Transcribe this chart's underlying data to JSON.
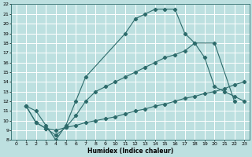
{
  "title": "",
  "xlabel": "Humidex (Indice chaleur)",
  "xlim": [
    -0.5,
    23.5
  ],
  "ylim": [
    8,
    22
  ],
  "xticks": [
    0,
    1,
    2,
    3,
    4,
    5,
    6,
    7,
    8,
    9,
    10,
    11,
    12,
    13,
    14,
    15,
    16,
    17,
    18,
    19,
    20,
    21,
    22,
    23
  ],
  "yticks": [
    8,
    9,
    10,
    11,
    12,
    13,
    14,
    15,
    16,
    17,
    18,
    19,
    20,
    21,
    22
  ],
  "bg_color": "#bde0e0",
  "grid_color": "#ffffff",
  "line_color": "#2d6b6b",
  "curve1_x": [
    1,
    2,
    3,
    4,
    5,
    6,
    7,
    11,
    12,
    13,
    14,
    15,
    16,
    17,
    18,
    20,
    22
  ],
  "curve1_y": [
    11.5,
    11.0,
    9.5,
    8.0,
    9.5,
    12.0,
    14.5,
    19.0,
    20.5,
    21.0,
    21.5,
    21.5,
    21.5,
    19.0,
    18.0,
    18.0,
    12.0
  ],
  "curve2_x": [
    1,
    2,
    3,
    4,
    5,
    6,
    7,
    8,
    9,
    10,
    11,
    12,
    13,
    14,
    15,
    16,
    17,
    18,
    19,
    20,
    21,
    22,
    23
  ],
  "curve2_y": [
    11.5,
    9.8,
    9.2,
    8.5,
    9.3,
    9.5,
    9.8,
    10.0,
    10.2,
    10.4,
    10.7,
    11.0,
    11.2,
    11.5,
    11.7,
    12.0,
    12.3,
    12.5,
    12.8,
    13.0,
    13.3,
    13.7,
    14.0
  ],
  "curve3_x": [
    1,
    2,
    3,
    4,
    5,
    6,
    7,
    8,
    9,
    10,
    11,
    12,
    13,
    14,
    15,
    16,
    17,
    18,
    19,
    20,
    21,
    22,
    23
  ],
  "curve3_y": [
    11.5,
    9.8,
    9.2,
    9.0,
    9.3,
    10.5,
    12.0,
    13.0,
    13.5,
    14.0,
    14.5,
    15.0,
    15.5,
    16.0,
    16.5,
    16.8,
    17.2,
    18.0,
    16.5,
    13.5,
    13.0,
    12.5,
    12.0
  ]
}
